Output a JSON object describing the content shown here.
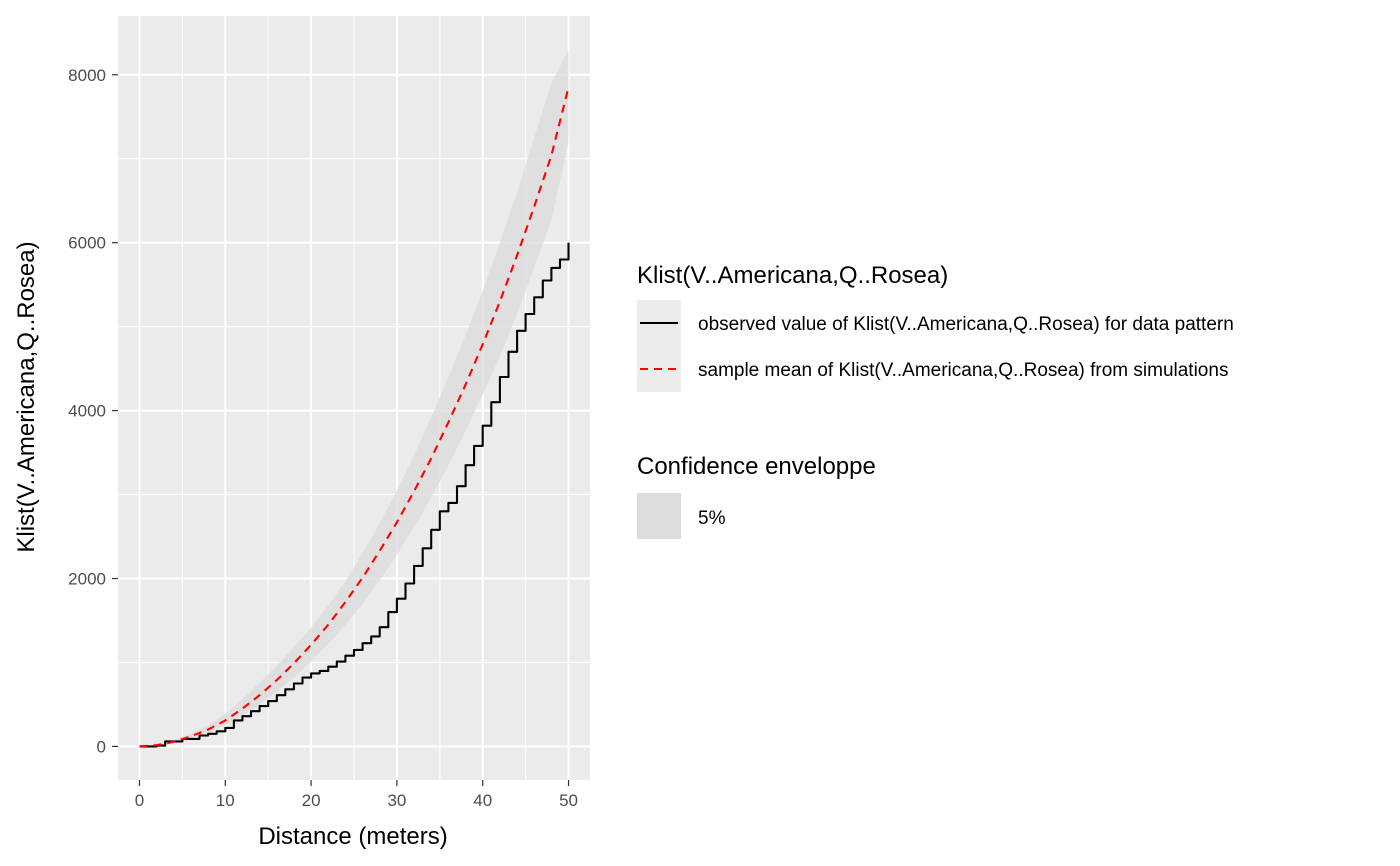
{
  "chart_data": {
    "type": "line",
    "xlabel": "Distance (meters)",
    "ylabel": "Klist(V..Americana,Q..Rosea)",
    "xlim": [
      -2.5,
      52.5
    ],
    "ylim": [
      -400,
      8700
    ],
    "x_ticks": [
      0,
      10,
      20,
      30,
      40,
      50
    ],
    "y_ticks": [
      0,
      2000,
      4000,
      6000,
      8000
    ],
    "grid": true,
    "legend_position": "right",
    "series": [
      {
        "name": "observed value of Klist(V..Americana,Q..Rosea) for data pattern",
        "style": "solid",
        "color": "#000000",
        "x": [
          0,
          2,
          3,
          5,
          7,
          8,
          9,
          10,
          11,
          12,
          13,
          14,
          15,
          16,
          17,
          18,
          19,
          20,
          21,
          22,
          23,
          24,
          25,
          26,
          27,
          28,
          29,
          30,
          31,
          32,
          33,
          34,
          35,
          36,
          37,
          38,
          39,
          40,
          41,
          42,
          43,
          44,
          45,
          46,
          47,
          48,
          49,
          50
        ],
        "y": [
          0,
          10,
          60,
          90,
          130,
          150,
          180,
          220,
          310,
          360,
          420,
          480,
          540,
          610,
          680,
          750,
          820,
          870,
          900,
          950,
          1010,
          1080,
          1150,
          1230,
          1310,
          1420,
          1600,
          1760,
          1940,
          2150,
          2360,
          2580,
          2800,
          2900,
          3100,
          3350,
          3580,
          3820,
          4100,
          4400,
          4700,
          4950,
          5150,
          5350,
          5550,
          5700,
          5800,
          6000
        ]
      },
      {
        "name": "sample mean of Klist(V..Americana,Q..Rosea) from simulations",
        "style": "dashed",
        "color": "#ff0000",
        "x": [
          0,
          2,
          4,
          6,
          8,
          10,
          12,
          14,
          16,
          18,
          20,
          22,
          24,
          26,
          28,
          30,
          32,
          34,
          36,
          38,
          40,
          42,
          44,
          46,
          48,
          50
        ],
        "y": [
          0,
          15,
          55,
          120,
          200,
          310,
          450,
          610,
          790,
          990,
          1210,
          1450,
          1720,
          2010,
          2330,
          2670,
          3040,
          3430,
          3860,
          4310,
          4790,
          5300,
          5850,
          6430,
          7040,
          7850
        ]
      }
    ],
    "envelope": {
      "name": "5%",
      "color": "#dcdcdc",
      "x": [
        0,
        2,
        4,
        6,
        8,
        10,
        12,
        14,
        16,
        18,
        20,
        22,
        24,
        26,
        28,
        30,
        32,
        34,
        36,
        38,
        40,
        42,
        44,
        46,
        48,
        50
      ],
      "lower": [
        0,
        5,
        40,
        95,
        160,
        250,
        370,
        500,
        650,
        820,
        1010,
        1220,
        1450,
        1700,
        1980,
        2280,
        2610,
        2960,
        3350,
        3760,
        4190,
        4650,
        5150,
        5700,
        6270,
        7200
      ],
      "upper": [
        0,
        25,
        75,
        150,
        250,
        390,
        560,
        760,
        960,
        1180,
        1420,
        1680,
        1970,
        2300,
        2660,
        3050,
        3470,
        3920,
        4400,
        4900,
        5430,
        6000,
        6600,
        7250,
        7900,
        8300
      ]
    }
  },
  "legend": {
    "title1": "Klist(V..Americana,Q..Rosea)",
    "item1": "observed value of Klist(V..Americana,Q..Rosea) for data pattern",
    "item2": "sample mean of Klist(V..Americana,Q..Rosea) from simulations",
    "title2": "Confidence enveloppe",
    "item3": "5%"
  },
  "colors": {
    "panel_background": "#ebebeb",
    "grid_major": "#ffffff",
    "envelope_fill": "#dcdcdc",
    "observed_line": "#000000",
    "mean_line": "#ff0000"
  }
}
